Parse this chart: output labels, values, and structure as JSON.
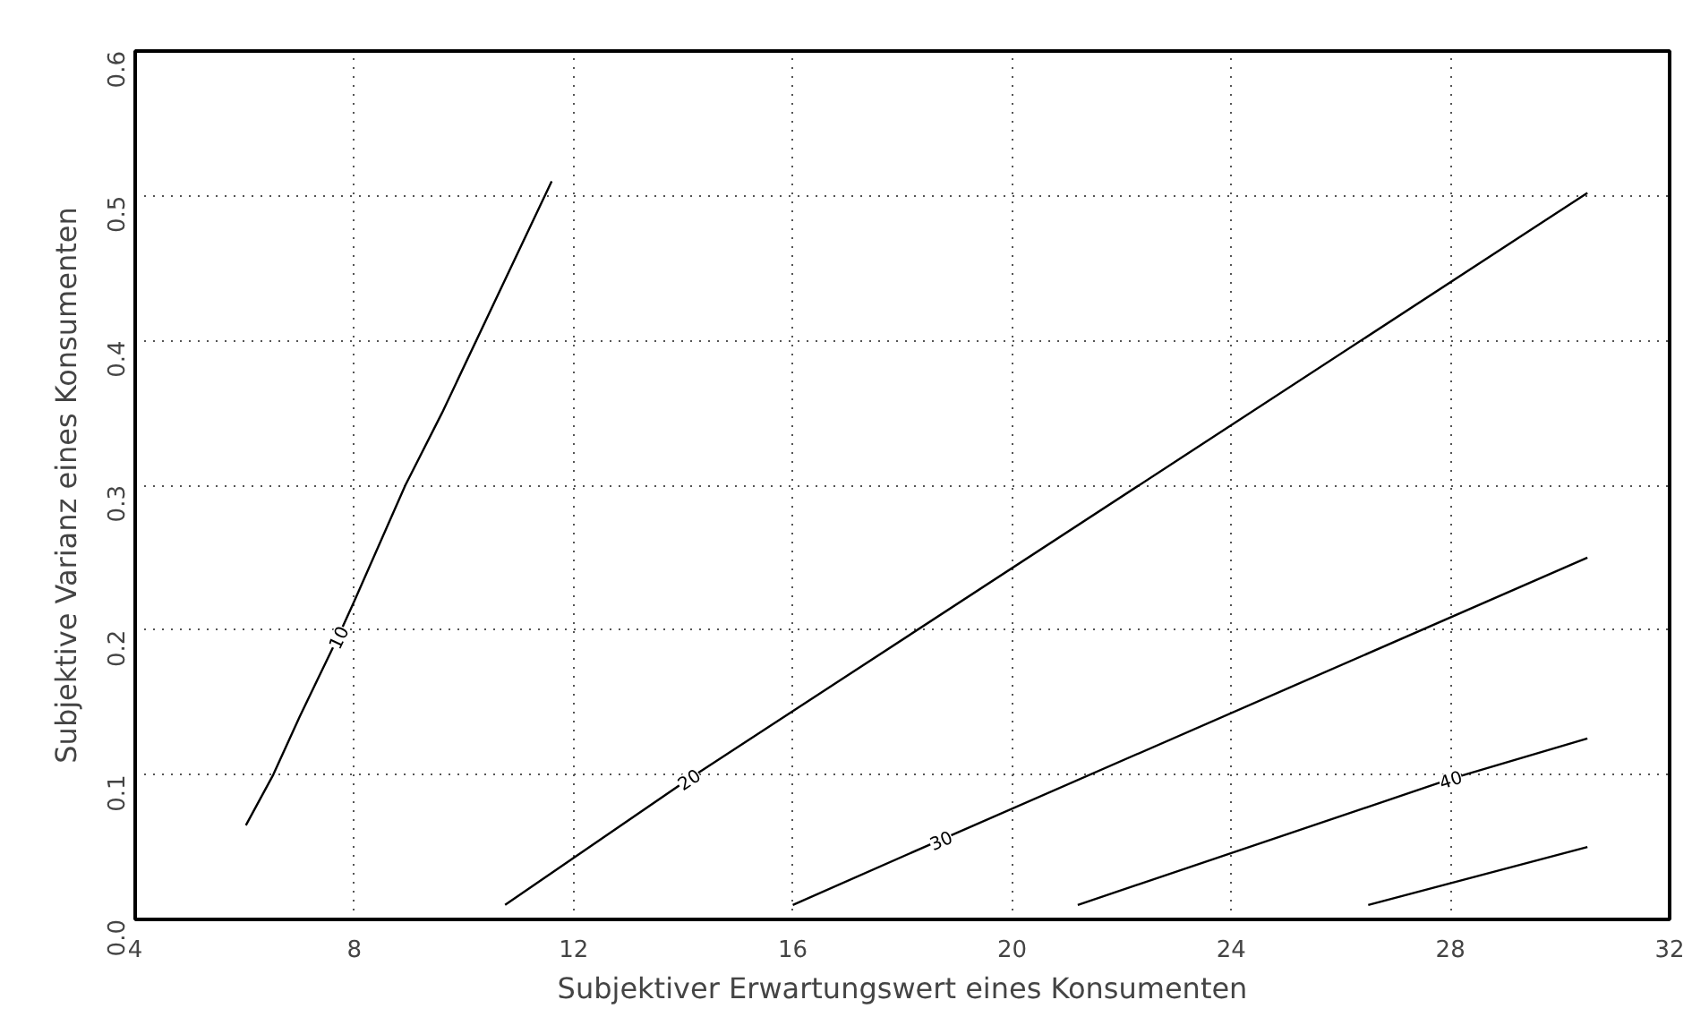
{
  "chart_data": {
    "type": "line",
    "xlabel": "Subjektiver Erwartungswert eines Konsumenten",
    "ylabel": "Subjektive Varianz eines Konsumenten",
    "xlim": [
      4,
      32
    ],
    "xticks": [
      4,
      8,
      12,
      16,
      20,
      24,
      28,
      32
    ],
    "ylim": [
      0,
      0.6
    ],
    "yticks": [
      {
        "value": 0,
        "label": "0.0"
      },
      {
        "value": 0.1,
        "label": "0.1"
      },
      {
        "value": 0.2,
        "label": "0.2"
      },
      {
        "value": 0.3,
        "label": "0.3"
      },
      {
        "value": 0.4,
        "label": "0.4"
      },
      {
        "value": 0.5,
        "label": "0.5"
      },
      {
        "value": 0.6,
        "label": "0.6"
      }
    ],
    "grid": true,
    "line_style": "solid",
    "marker": "none",
    "series": [
      {
        "name": "10",
        "color": "#000000",
        "x": [
          6.02,
          6.52,
          7.0,
          7.7,
          8.0,
          8.93,
          9.6,
          11.6
        ],
        "values": [
          0.065,
          0.1,
          0.14,
          0.195,
          0.22,
          0.3,
          0.35,
          0.51
        ]
      },
      {
        "name": "20",
        "color": "#000000",
        "x": [
          10.75,
          14.1,
          30.5
        ],
        "values": [
          0.01,
          0.097,
          0.502
        ]
      },
      {
        "name": "30",
        "color": "#000000",
        "x": [
          16.0,
          18.7,
          30.5
        ],
        "values": [
          0.01,
          0.055,
          0.25
        ]
      },
      {
        "name": "40",
        "color": "#000000",
        "x": [
          21.2,
          28.0,
          30.5
        ],
        "values": [
          0.01,
          0.097,
          0.125
        ]
      },
      {
        "color": "#000000",
        "x": [
          26.5,
          30.5
        ],
        "values": [
          0.01,
          0.05
        ]
      }
    ]
  }
}
